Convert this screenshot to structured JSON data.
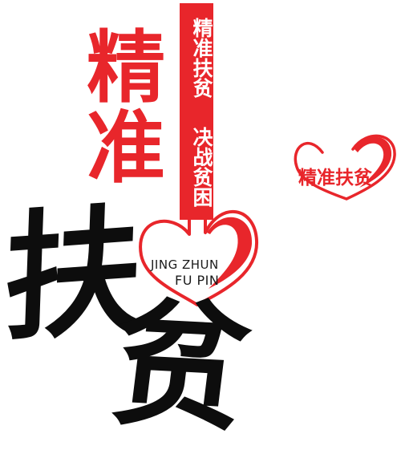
{
  "poster": {
    "big_red_chars": [
      "精",
      "准"
    ],
    "banner_lines": [
      "精准扶贫",
      "决战贫困"
    ],
    "pinyin_line_1": "JING ZHUN",
    "pinyin_line_2": "FU PIN",
    "calligraphy_chars": [
      "扶",
      "贫"
    ]
  },
  "small_logo": {
    "text": "精准扶贫"
  },
  "colors": {
    "brand_red": "#e8262b",
    "ink_black": "#0d0d0d",
    "background": "#ffffff"
  },
  "icons": {
    "large_heart": "heart-outline-icon",
    "small_heart": "heart-outline-icon"
  }
}
